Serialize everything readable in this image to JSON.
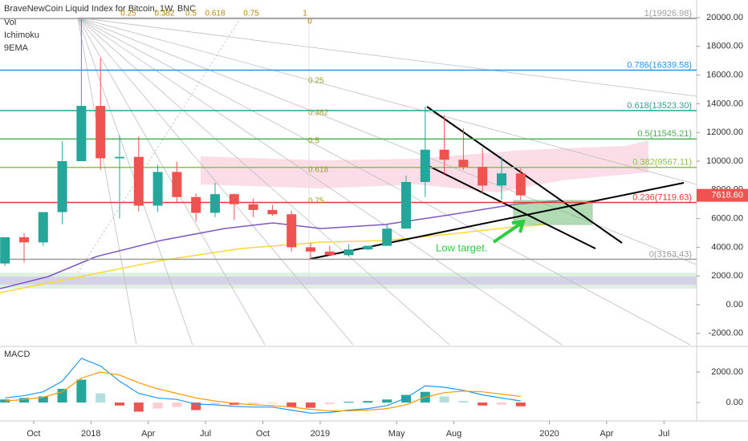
{
  "chart_data": {
    "type": "candlestick",
    "title": "BraveNewCoin Liquid Index for Bitcoin, 1W, BNC",
    "indicators": [
      "Vol",
      "Ichimoku",
      "9EMA"
    ],
    "x": [
      7.5,
      8.5,
      9.5,
      10.5,
      11.5,
      12.5,
      13.5,
      14.5,
      15.5,
      16.5,
      17.5,
      18.5,
      19.5,
      20.5,
      21.5,
      22.5,
      23.5,
      24.5,
      25.5,
      26.5,
      27.5,
      28.5,
      29.5,
      30.5,
      31.5,
      32.5,
      33.5,
      34.5
    ],
    "open": [
      2870,
      4700,
      4340,
      6450,
      10000,
      13850,
      10200,
      10300,
      6900,
      9250,
      7500,
      6400,
      7700,
      7000,
      6600,
      6300,
      4000,
      3700,
      3450,
      3850,
      4100,
      5300,
      8550,
      10800,
      10100,
      9600,
      8300,
      9150
    ],
    "high": [
      4700,
      4980,
      6450,
      11400,
      19900,
      17200,
      11800,
      11700,
      9750,
      9950,
      7750,
      8500,
      7750,
      7400,
      6950,
      6550,
      4300,
      4100,
      4200,
      4100,
      5600,
      9000,
      13800,
      13200,
      12300,
      10900,
      10300,
      9500
    ],
    "low": [
      2700,
      2950,
      4100,
      5600,
      10000,
      9400,
      6000,
      6500,
      6450,
      7100,
      5800,
      6100,
      5900,
      6100,
      6200,
      3700,
      3150,
      3400,
      3400,
      3800,
      4100,
      5300,
      7500,
      9100,
      9400,
      7700,
      7300,
      7300
    ],
    "close": [
      4700,
      4340,
      6450,
      10000,
      13850,
      10200,
      10300,
      6900,
      9250,
      7500,
      6400,
      7700,
      7000,
      6600,
      6300,
      4000,
      3700,
      3450,
      3850,
      4100,
      5300,
      8550,
      10800,
      10100,
      9600,
      8300,
      9150,
      7618.6
    ],
    "up_color": "#26a69a",
    "down_color": "#ef5350",
    "xlim": [
      7.24,
      43.71
    ],
    "xticks": [
      {
        "value": 9,
        "label": "Oct"
      },
      {
        "value": 12,
        "label": "2018"
      },
      {
        "value": 15,
        "label": "Apr"
      },
      {
        "value": 18,
        "label": "Jul"
      },
      {
        "value": 21,
        "label": "Oct"
      },
      {
        "value": 24,
        "label": "2019"
      },
      {
        "value": 28,
        "label": "May"
      },
      {
        "value": 31,
        "label": "Aug"
      },
      {
        "value": 36,
        "label": "2020"
      },
      {
        "value": 39,
        "label": "Apr"
      },
      {
        "value": 42,
        "label": "Jul"
      }
    ],
    "ylim": [
      -2905,
      21229
    ],
    "yticks": [
      {
        "value": 20000,
        "label": "20000.00"
      },
      {
        "value": 18000,
        "label": "18000.00"
      },
      {
        "value": 16000,
        "label": "16000.00"
      },
      {
        "value": 14000,
        "label": "14000.00"
      },
      {
        "value": 12000,
        "label": "12000.00"
      },
      {
        "value": 10000,
        "label": "10000.00"
      },
      {
        "value": 8000,
        "label": "8000.00"
      },
      {
        "value": 6000,
        "label": "6000.00"
      },
      {
        "value": 4000,
        "label": "4000.00"
      },
      {
        "value": 2000,
        "label": "2000.00"
      },
      {
        "value": 0,
        "label": "0.00"
      },
      {
        "value": -2000,
        "label": "-2000.00"
      }
    ],
    "last_price": {
      "value": 7618.6,
      "label": "7618.60"
    },
    "fib_levels": [
      {
        "value": 19926.98,
        "label": "1(19926.98)",
        "color": "#9e9e9e"
      },
      {
        "value": 16339.58,
        "label": "0.786(16339.58)",
        "color": "#2196f3"
      },
      {
        "value": 13523.3,
        "label": "0.618(13523.30)",
        "color": "#26a69a"
      },
      {
        "value": 11545.21,
        "label": "0.5(11545.21)",
        "color": "#4caf50"
      },
      {
        "value": 9567.11,
        "label": "0.382(9567.11)",
        "color": "#8bc34a"
      },
      {
        "value": 7119.63,
        "label": "0.236(7119.63)",
        "color": "#e53935"
      },
      {
        "value": 3163.43,
        "label": "0(3163.43)",
        "color": "#9e9e9e"
      }
    ],
    "fan_top_labels": [
      "0.25",
      "0.382",
      "0.5",
      "0.618",
      "0.75",
      "1",
      "0"
    ],
    "fan_mid_labels": [
      "0.25",
      "0.382",
      "0.5",
      "0.618",
      "0.75"
    ],
    "annotation": "Low target.",
    "macd": {
      "title": "MACD",
      "ylim": [
        -1210,
        3474
      ],
      "yticks": [
        {
          "value": 2000,
          "label": "2000.00"
        },
        {
          "value": 0,
          "label": "0.00"
        }
      ],
      "histogram": [
        200,
        300,
        400,
        900,
        1500,
        600,
        -200,
        -600,
        -400,
        -300,
        -500,
        -100,
        -150,
        -100,
        -50,
        -300,
        -350,
        -100,
        50,
        100,
        200,
        500,
        700,
        400,
        100,
        -200,
        -150,
        -250
      ],
      "macd_line": [
        300,
        450,
        700,
        1400,
        2900,
        2400,
        1400,
        600,
        300,
        200,
        -100,
        -150,
        -250,
        -300,
        -300,
        -500,
        -700,
        -650,
        -500,
        -400,
        -200,
        300,
        1100,
        1000,
        800,
        500,
        300,
        100
      ],
      "signal_line": [
        100,
        200,
        350,
        700,
        1600,
        2000,
        1800,
        1300,
        900,
        600,
        300,
        100,
        -50,
        -150,
        -200,
        -300,
        -450,
        -550,
        -550,
        -500,
        -400,
        -150,
        350,
        650,
        750,
        700,
        550,
        400
      ]
    }
  }
}
